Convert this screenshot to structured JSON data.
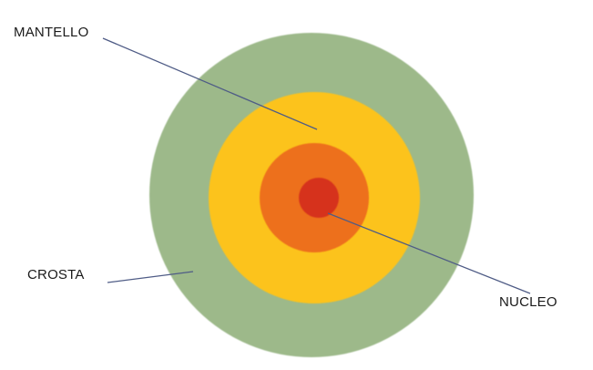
{
  "labels": {
    "mantello": "MANTELLO",
    "crosta": "CROSTA",
    "nucleo": "NUCLEO"
  },
  "colors": {
    "crust": "#9db98a",
    "mantle": "#fcc31b",
    "outer_core": "#ed6f1c",
    "inner_core": "#d6321b",
    "leader_line": "#4f5c86"
  }
}
